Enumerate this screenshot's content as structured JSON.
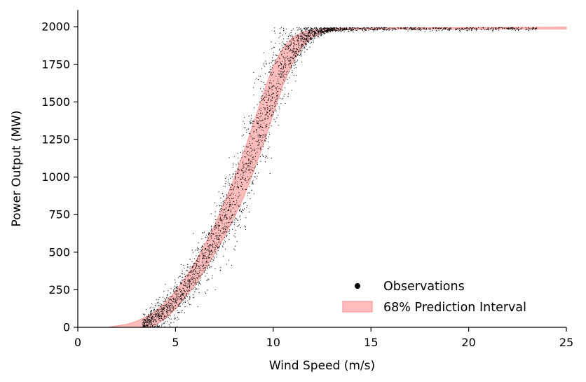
{
  "chart_data": {
    "type": "scatter",
    "title": "",
    "xlabel": "Wind Speed (m/s)",
    "ylabel": "Power Output (MW)",
    "xlim": [
      0,
      25
    ],
    "ylim": [
      0,
      2100
    ],
    "xticks": [
      0,
      5,
      10,
      15,
      20,
      25
    ],
    "yticks": [
      0,
      250,
      500,
      750,
      1000,
      1250,
      1500,
      1750,
      2000
    ],
    "grid": false,
    "legend_position": "bottom-right",
    "legend": [
      {
        "label": "Observations",
        "marker": "dot",
        "color": "#000000"
      },
      {
        "label": "68% Prediction Interval",
        "marker": "patch",
        "color": "#ff9a9a"
      }
    ],
    "series": [
      {
        "name": "Observations",
        "type": "scatter",
        "color": "#000000",
        "description_points_sampled_along_curve": true,
        "x_range": [
          3.3,
          23.5
        ],
        "count": 3000
      },
      {
        "name": "68% Prediction Interval",
        "type": "area",
        "color": "#ff9a9a",
        "x": [
          1.5,
          2.5,
          3.0,
          3.5,
          4.0,
          4.5,
          5.0,
          5.5,
          6.0,
          6.5,
          7.0,
          7.5,
          8.0,
          8.5,
          9.0,
          9.5,
          10.0,
          10.5,
          11.0,
          11.5,
          12.0,
          12.5,
          13.0,
          14.0,
          15.0,
          17.0,
          20.0,
          25.0
        ],
        "lower": [
          0,
          0,
          0,
          0,
          15,
          60,
          120,
          200,
          280,
          380,
          490,
          600,
          730,
          870,
          1040,
          1220,
          1420,
          1610,
          1760,
          1870,
          1930,
          1960,
          1975,
          1982,
          1984,
          1985,
          1985,
          1985
        ],
        "upper": [
          0,
          20,
          40,
          70,
          110,
          170,
          240,
          330,
          430,
          550,
          680,
          830,
          990,
          1170,
          1360,
          1560,
          1740,
          1860,
          1930,
          1965,
          1980,
          1985,
          1990,
          1992,
          1993,
          1994,
          1995,
          1998
        ]
      }
    ]
  }
}
